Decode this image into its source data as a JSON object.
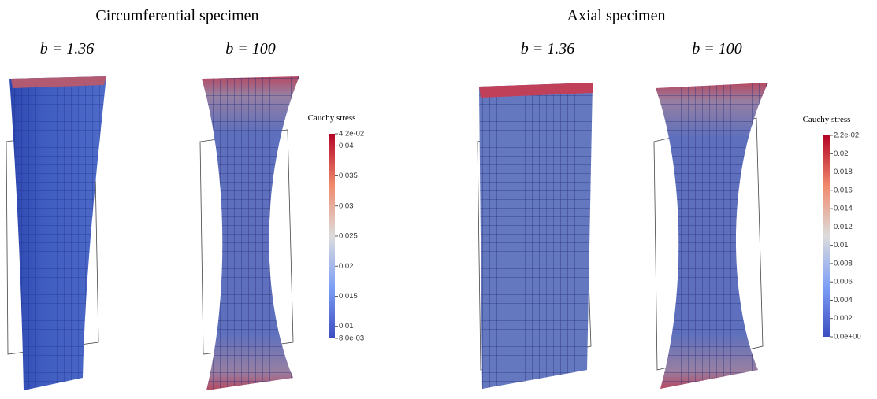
{
  "panels": [
    {
      "title": "Circumferential specimen",
      "cases": [
        "b = 1.36",
        "b = 100"
      ],
      "colorbar": {
        "title": "Cauchy stress",
        "range": [
          0.008,
          0.042
        ],
        "ticks": [
          {
            "value": 0.042,
            "label": "4.2e-02"
          },
          0.04,
          0.035,
          0.03,
          0.025,
          0.02,
          0.015,
          0.01,
          {
            "value": 0.008,
            "label": "8.0e-03"
          }
        ]
      }
    },
    {
      "title": "Axial specimen",
      "cases": [
        "b = 1.36",
        "b = 100"
      ],
      "colorbar": {
        "title": "Cauchy stress",
        "range": [
          0,
          0.022
        ],
        "ticks": [
          {
            "value": 0.022,
            "label": "2.2e-02"
          },
          0.02,
          0.018,
          0.016,
          0.014,
          0.012,
          0.01,
          0.008,
          0.006,
          0.004,
          0.002,
          {
            "value": 0,
            "label": "0.0e+00"
          }
        ]
      }
    }
  ]
}
